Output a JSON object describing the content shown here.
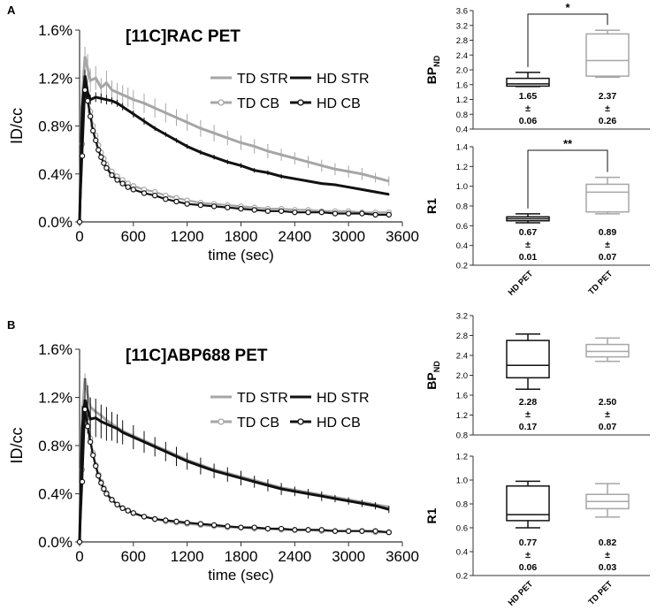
{
  "colors": {
    "td": "#a6a6a6",
    "hd": "#111111",
    "axis": "#333333",
    "text": "#000000"
  },
  "chart_data": [
    {
      "panel": "A",
      "type": "line",
      "title": "[11C]RAC PET",
      "xlabel": "time (sec)",
      "ylabel": "ID/cc",
      "xlim": [
        0,
        3600
      ],
      "ylim": [
        0,
        1.6
      ],
      "xticks": [
        "0",
        "600",
        "1200",
        "1800",
        "2400",
        "3000",
        "3600"
      ],
      "yticks": [
        "0.0%",
        "0.4%",
        "0.8%",
        "1.2%",
        "1.6%"
      ],
      "legend": [
        "TD STR",
        "HD STR",
        "TD CB",
        "HD CB"
      ],
      "series": [
        {
          "name": "TD STR",
          "style": "td-line",
          "x": [
            0,
            30,
            60,
            90,
            120,
            180,
            240,
            300,
            360,
            420,
            480,
            540,
            600,
            720,
            840,
            960,
            1080,
            1200,
            1350,
            1500,
            1650,
            1800,
            1950,
            2100,
            2250,
            2400,
            2550,
            2700,
            2850,
            3000,
            3150,
            3300,
            3450
          ],
          "y": [
            0,
            1.05,
            1.38,
            1.28,
            1.18,
            1.2,
            1.12,
            1.16,
            1.1,
            1.08,
            1.06,
            1.04,
            1.02,
            0.99,
            0.95,
            0.91,
            0.87,
            0.83,
            0.78,
            0.74,
            0.7,
            0.66,
            0.63,
            0.59,
            0.56,
            0.53,
            0.5,
            0.47,
            0.44,
            0.42,
            0.4,
            0.37,
            0.34
          ],
          "err": [
            0,
            0.12,
            0.08,
            0.12,
            0.1,
            0.1,
            0.08,
            0.1,
            0.08,
            0.08,
            0.08,
            0.08,
            0.08,
            0.08,
            0.08,
            0.08,
            0.07,
            0.07,
            0.07,
            0.07,
            0.06,
            0.06,
            0.06,
            0.06,
            0.05,
            0.05,
            0.05,
            0.05,
            0.05,
            0.05,
            0.05,
            0.04,
            0.04
          ]
        },
        {
          "name": "HD STR",
          "style": "hd-line",
          "x": [
            0,
            30,
            60,
            90,
            120,
            180,
            240,
            300,
            360,
            420,
            480,
            600,
            720,
            840,
            960,
            1080,
            1200,
            1350,
            1500,
            1650,
            1800,
            1950,
            2100,
            2250,
            2400,
            2550,
            2700,
            2850,
            3000,
            3150,
            3300,
            3450
          ],
          "y": [
            0,
            0.95,
            1.22,
            1.08,
            1.02,
            1.04,
            1.03,
            1.02,
            1.01,
            0.99,
            0.96,
            0.9,
            0.84,
            0.78,
            0.73,
            0.68,
            0.63,
            0.58,
            0.54,
            0.5,
            0.47,
            0.43,
            0.41,
            0.38,
            0.36,
            0.34,
            0.32,
            0.31,
            0.29,
            0.27,
            0.25,
            0.23
          ],
          "err": [
            0,
            0.08,
            0.05,
            0.05,
            0.04,
            0.04,
            0.04,
            0.04,
            0.03,
            0.03,
            0.03,
            0.03,
            0.03,
            0.02,
            0.02,
            0.02,
            0.02,
            0.02,
            0.02,
            0.02,
            0.02,
            0.02,
            0.02,
            0.02,
            0.01,
            0.01,
            0.01,
            0.01,
            0.01,
            0.01,
            0.01,
            0.01
          ]
        },
        {
          "name": "TD CB",
          "style": "td-marker",
          "x": [
            0,
            30,
            60,
            90,
            120,
            150,
            180,
            210,
            240,
            270,
            300,
            360,
            420,
            480,
            540,
            600,
            720,
            840,
            960,
            1080,
            1200,
            1350,
            1500,
            1650,
            1800,
            1950,
            2100,
            2250,
            2400,
            2550,
            2700,
            2850,
            3000,
            3150,
            3300,
            3450
          ],
          "y": [
            0,
            0.65,
            1.16,
            1.05,
            0.92,
            0.8,
            0.72,
            0.64,
            0.58,
            0.53,
            0.48,
            0.42,
            0.38,
            0.35,
            0.32,
            0.3,
            0.27,
            0.25,
            0.22,
            0.2,
            0.18,
            0.16,
            0.15,
            0.14,
            0.13,
            0.12,
            0.11,
            0.11,
            0.1,
            0.1,
            0.09,
            0.09,
            0.09,
            0.08,
            0.08,
            0.08
          ]
        },
        {
          "name": "HD CB",
          "style": "hd-marker",
          "x": [
            0,
            30,
            60,
            90,
            120,
            150,
            180,
            210,
            240,
            270,
            300,
            360,
            420,
            480,
            540,
            600,
            720,
            840,
            960,
            1080,
            1200,
            1350,
            1500,
            1650,
            1800,
            1950,
            2100,
            2250,
            2400,
            2550,
            2700,
            2850,
            3000,
            3150,
            3300,
            3450
          ],
          "y": [
            0,
            0.55,
            1.1,
            1.01,
            0.88,
            0.76,
            0.68,
            0.6,
            0.54,
            0.49,
            0.45,
            0.39,
            0.35,
            0.32,
            0.29,
            0.27,
            0.24,
            0.22,
            0.19,
            0.17,
            0.15,
            0.14,
            0.13,
            0.12,
            0.11,
            0.1,
            0.09,
            0.09,
            0.08,
            0.08,
            0.08,
            0.07,
            0.07,
            0.07,
            0.06,
            0.06
          ]
        }
      ]
    },
    {
      "panel": "B",
      "type": "line",
      "title": "[11C]ABP688 PET",
      "xlabel": "time (sec)",
      "ylabel": "ID/cc",
      "xlim": [
        0,
        3600
      ],
      "ylim": [
        0,
        1.6
      ],
      "xticks": [
        "0",
        "600",
        "1200",
        "1800",
        "2400",
        "3000",
        "3600"
      ],
      "yticks": [
        "0.0%",
        "0.4%",
        "0.8%",
        "1.2%",
        "1.6%"
      ],
      "legend": [
        "TD STR",
        "HD STR",
        "TD CB",
        "HD CB"
      ],
      "series": [
        {
          "name": "TD STR",
          "style": "td-line",
          "x": [
            0,
            30,
            60,
            90,
            120,
            180,
            240,
            300,
            360,
            420,
            480,
            600,
            720,
            840,
            960,
            1080,
            1200,
            1350,
            1500,
            1650,
            1800,
            1950,
            2100,
            2250,
            2400,
            2550,
            2700,
            2850,
            3000,
            3150,
            3300,
            3450
          ],
          "y": [
            0,
            1.05,
            1.36,
            1.22,
            1.12,
            1.08,
            1.05,
            1.01,
            0.98,
            0.95,
            0.92,
            0.88,
            0.84,
            0.8,
            0.76,
            0.72,
            0.68,
            0.64,
            0.6,
            0.57,
            0.54,
            0.51,
            0.48,
            0.45,
            0.43,
            0.41,
            0.39,
            0.37,
            0.35,
            0.33,
            0.31,
            0.29
          ],
          "err": [
            0,
            0.05,
            0.04,
            0.04,
            0.04,
            0.04,
            0.03,
            0.03,
            0.03,
            0.03,
            0.03,
            0.02,
            0.02,
            0.02,
            0.02,
            0.02,
            0.02,
            0.02,
            0.02,
            0.02,
            0.02,
            0.02,
            0.02,
            0.02,
            0.02,
            0.01,
            0.01,
            0.01,
            0.01,
            0.01,
            0.01,
            0.01
          ]
        },
        {
          "name": "HD STR",
          "style": "hd-line",
          "x": [
            0,
            30,
            60,
            90,
            120,
            180,
            240,
            300,
            360,
            420,
            480,
            600,
            720,
            840,
            960,
            1080,
            1200,
            1350,
            1500,
            1650,
            1800,
            1950,
            2100,
            2250,
            2400,
            2550,
            2700,
            2850,
            3000,
            3150,
            3300,
            3450
          ],
          "y": [
            0,
            0.95,
            1.18,
            1.1,
            1.02,
            1.03,
            1.0,
            0.98,
            0.96,
            0.94,
            0.91,
            0.87,
            0.83,
            0.79,
            0.75,
            0.71,
            0.67,
            0.63,
            0.59,
            0.56,
            0.53,
            0.5,
            0.47,
            0.44,
            0.42,
            0.4,
            0.38,
            0.36,
            0.34,
            0.32,
            0.3,
            0.27
          ],
          "err": [
            0,
            0.18,
            0.18,
            0.2,
            0.18,
            0.16,
            0.14,
            0.14,
            0.12,
            0.12,
            0.1,
            0.1,
            0.09,
            0.08,
            0.08,
            0.08,
            0.07,
            0.07,
            0.06,
            0.06,
            0.06,
            0.05,
            0.05,
            0.05,
            0.04,
            0.04,
            0.04,
            0.03,
            0.03,
            0.03,
            0.03,
            0.03
          ]
        },
        {
          "name": "TD CB",
          "style": "td-marker",
          "x": [
            0,
            30,
            60,
            90,
            120,
            150,
            180,
            210,
            240,
            270,
            300,
            360,
            420,
            480,
            540,
            600,
            720,
            840,
            960,
            1080,
            1200,
            1350,
            1500,
            1650,
            1800,
            1950,
            2100,
            2250,
            2400,
            2550,
            2700,
            2850,
            3000,
            3150,
            3300,
            3450
          ],
          "y": [
            0,
            0.6,
            1.16,
            1.0,
            0.86,
            0.74,
            0.64,
            0.56,
            0.5,
            0.45,
            0.41,
            0.35,
            0.31,
            0.28,
            0.26,
            0.24,
            0.21,
            0.19,
            0.17,
            0.16,
            0.15,
            0.14,
            0.13,
            0.12,
            0.12,
            0.11,
            0.11,
            0.1,
            0.1,
            0.1,
            0.09,
            0.09,
            0.09,
            0.09,
            0.08,
            0.08
          ]
        },
        {
          "name": "HD CB",
          "style": "hd-marker",
          "x": [
            0,
            30,
            60,
            90,
            120,
            150,
            180,
            210,
            240,
            270,
            300,
            360,
            420,
            480,
            540,
            600,
            720,
            840,
            960,
            1080,
            1200,
            1350,
            1500,
            1650,
            1800,
            1950,
            2100,
            2250,
            2400,
            2550,
            2700,
            2850,
            3000,
            3150,
            3300,
            3450
          ],
          "y": [
            0,
            0.5,
            1.1,
            0.96,
            0.83,
            0.72,
            0.63,
            0.55,
            0.49,
            0.44,
            0.4,
            0.35,
            0.31,
            0.28,
            0.26,
            0.24,
            0.21,
            0.19,
            0.18,
            0.17,
            0.16,
            0.15,
            0.14,
            0.13,
            0.12,
            0.12,
            0.11,
            0.11,
            0.1,
            0.1,
            0.1,
            0.09,
            0.09,
            0.09,
            0.09,
            0.08
          ]
        }
      ]
    },
    {
      "panel": "A",
      "type": "boxplot",
      "ylabel": "BP",
      "ylabel_sub": "ND",
      "ylim": [
        0.4,
        3.6
      ],
      "yticks": [
        "0.4",
        "0.8",
        "1.2",
        "1.6",
        "2.0",
        "2.4",
        "2.8",
        "3.2",
        "3.6"
      ],
      "yticks_values": [
        0.4,
        0.8,
        1.2,
        1.6,
        2.0,
        2.4,
        2.8,
        3.2,
        3.6
      ],
      "groups": [
        "HD PET",
        "TD PET"
      ],
      "boxes": [
        {
          "group": "HD PET",
          "min": 1.55,
          "q1": 1.56,
          "median": 1.62,
          "q3": 1.77,
          "max": 1.93,
          "mean": "1.65",
          "sem": "0.06"
        },
        {
          "group": "TD PET",
          "min": 1.8,
          "q1": 1.83,
          "median": 2.25,
          "q3": 2.97,
          "max": 3.07,
          "mean": "2.37",
          "sem": "0.26"
        }
      ],
      "pm": "±",
      "significance": "*",
      "xlabels_shown": false
    },
    {
      "panel": "A",
      "type": "boxplot",
      "ylabel": "R1",
      "ylabel_sub": "",
      "ylim": [
        0.2,
        1.4
      ],
      "yticks": [
        "0.2",
        "0.4",
        "0.6",
        "0.8",
        "1.0",
        "1.2",
        "1.4"
      ],
      "yticks_values": [
        0.2,
        0.4,
        0.6,
        0.8,
        1.0,
        1.2,
        1.4
      ],
      "groups": [
        "HD PET",
        "TD PET"
      ],
      "boxes": [
        {
          "group": "HD PET",
          "min": 0.63,
          "q1": 0.65,
          "median": 0.67,
          "q3": 0.69,
          "max": 0.72,
          "mean": "0.67",
          "sem": "0.01"
        },
        {
          "group": "TD PET",
          "min": 0.72,
          "q1": 0.74,
          "median": 0.94,
          "q3": 1.02,
          "max": 1.09,
          "mean": "0.89",
          "sem": "0.07"
        }
      ],
      "pm": "±",
      "significance": "**",
      "xlabels_shown": true
    },
    {
      "panel": "B",
      "type": "boxplot",
      "ylabel": "BP",
      "ylabel_sub": "ND",
      "ylim": [
        0.8,
        3.2
      ],
      "yticks": [
        "0.8",
        "1.2",
        "1.6",
        "2.0",
        "2.4",
        "2.8",
        "3.2"
      ],
      "yticks_values": [
        0.8,
        1.2,
        1.6,
        2.0,
        2.4,
        2.8,
        3.2
      ],
      "groups": [
        "HD PET",
        "TD PET"
      ],
      "boxes": [
        {
          "group": "HD PET",
          "min": 1.72,
          "q1": 1.95,
          "median": 2.2,
          "q3": 2.7,
          "max": 2.83,
          "mean": "2.28",
          "sem": "0.17"
        },
        {
          "group": "TD PET",
          "min": 2.28,
          "q1": 2.37,
          "median": 2.48,
          "q3": 2.62,
          "max": 2.75,
          "mean": "2.50",
          "sem": "0.07"
        }
      ],
      "pm": "±",
      "significance": "",
      "xlabels_shown": false
    },
    {
      "panel": "B",
      "type": "boxplot",
      "ylabel": "R1",
      "ylabel_sub": "",
      "ylim": [
        0.2,
        1.2
      ],
      "yticks": [
        "0.2",
        "0.4",
        "0.6",
        "0.8",
        "1.0",
        "1.2"
      ],
      "yticks_values": [
        0.2,
        0.4,
        0.6,
        0.8,
        1.0,
        1.2
      ],
      "groups": [
        "HD PET",
        "TD PET"
      ],
      "boxes": [
        {
          "group": "HD PET",
          "min": 0.6,
          "q1": 0.66,
          "median": 0.71,
          "q3": 0.95,
          "max": 0.99,
          "mean": "0.77",
          "sem": "0.06"
        },
        {
          "group": "TD PET",
          "min": 0.69,
          "q1": 0.76,
          "median": 0.82,
          "q3": 0.88,
          "max": 0.97,
          "mean": "0.82",
          "sem": "0.03"
        }
      ],
      "pm": "±",
      "significance": "",
      "xlabels_shown": true
    }
  ]
}
